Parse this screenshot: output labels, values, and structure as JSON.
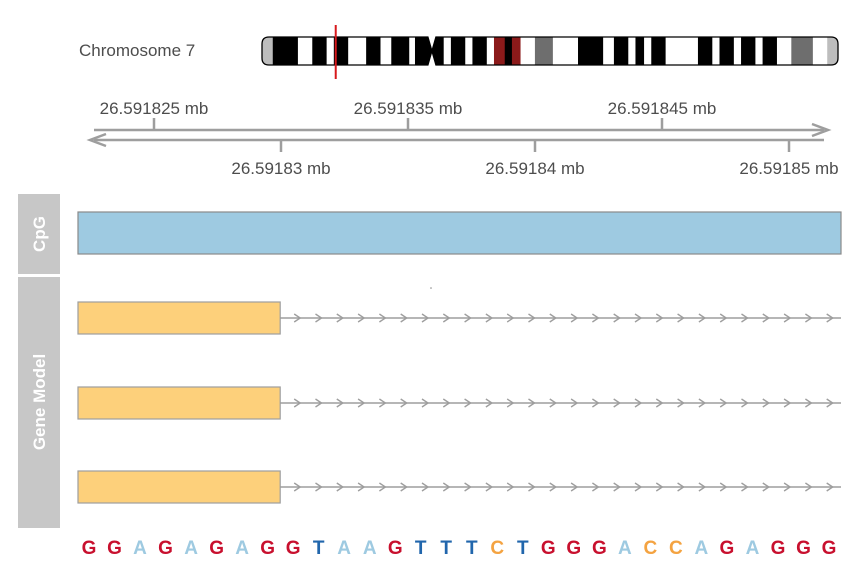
{
  "ideogram": {
    "label": "Chromosome 7",
    "bands": [
      {
        "color": "#bdbdbd",
        "len": 1.5
      },
      {
        "color": "#000000",
        "len": 3.5
      },
      {
        "color": "#ffffff",
        "len": 2
      },
      {
        "color": "#000000",
        "len": 2
      },
      {
        "color": "#ffffff",
        "len": 1
      },
      {
        "color": "#000000",
        "len": 2
      },
      {
        "color": "#ffffff",
        "len": 2.5
      },
      {
        "color": "#000000",
        "len": 2
      },
      {
        "color": "#ffffff",
        "len": 1.5
      },
      {
        "color": "#000000",
        "len": 2.5
      },
      {
        "color": "#ffffff",
        "len": 0.8
      },
      {
        "color": "#000000",
        "len": 4
      },
      {
        "color": "#ffffff",
        "len": 1
      },
      {
        "color": "#000000",
        "len": 2
      },
      {
        "color": "#ffffff",
        "len": 1
      },
      {
        "color": "#000000",
        "len": 2
      },
      {
        "color": "#ffffff",
        "len": 1
      },
      {
        "color": "#8b1a1a",
        "len": 1.5
      },
      {
        "color": "#000000",
        "len": 1
      },
      {
        "color": "#8b1a1a",
        "len": 1.2
      },
      {
        "color": "#ffffff",
        "len": 2
      },
      {
        "color": "#6e6e6e",
        "len": 2.5
      },
      {
        "color": "#ffffff",
        "len": 3.5
      },
      {
        "color": "#000000",
        "len": 3.5
      },
      {
        "color": "#ffffff",
        "len": 1.5
      },
      {
        "color": "#000000",
        "len": 2
      },
      {
        "color": "#ffffff",
        "len": 1
      },
      {
        "color": "#000000",
        "len": 1.2
      },
      {
        "color": "#ffffff",
        "len": 1
      },
      {
        "color": "#000000",
        "len": 2
      },
      {
        "color": "#ffffff",
        "len": 4.5
      },
      {
        "color": "#000000",
        "len": 2
      },
      {
        "color": "#ffffff",
        "len": 1
      },
      {
        "color": "#000000",
        "len": 2
      },
      {
        "color": "#ffffff",
        "len": 1
      },
      {
        "color": "#000000",
        "len": 2
      },
      {
        "color": "#ffffff",
        "len": 1
      },
      {
        "color": "#000000",
        "len": 2
      },
      {
        "color": "#ffffff",
        "len": 2
      },
      {
        "color": "#6e6e6e",
        "len": 3
      },
      {
        "color": "#ffffff",
        "len": 2
      },
      {
        "color": "#bdbdbd",
        "len": 1.5
      }
    ],
    "centromere_fraction": 0.295,
    "highlight_fraction": 0.128,
    "highlight_color": "#d7191c",
    "centromere_color": "#8b1a1a"
  },
  "axis": {
    "upper_ticks": [
      {
        "pos": 26.591825,
        "label": "26.591825 mb"
      },
      {
        "pos": 26.591835,
        "label": "26.591835 mb"
      },
      {
        "pos": 26.591845,
        "label": "26.591845 mb"
      }
    ],
    "lower_ticks": [
      {
        "pos": 26.59183,
        "label": "26.59183 mb"
      },
      {
        "pos": 26.59184,
        "label": "26.59184 mb"
      },
      {
        "pos": 26.59185,
        "label": "26.59185 mb"
      }
    ],
    "range_mb": [
      26.59182,
      26.59185
    ]
  },
  "tracks": {
    "cpg": {
      "title": "CpG",
      "fill": "#9ecae1"
    },
    "gene_model": {
      "title": "Gene Model",
      "exon_fill": "#fdd07b",
      "transcripts": [
        {
          "exon_end_fraction": 0.265
        },
        {
          "exon_end_fraction": 0.265
        },
        {
          "exon_end_fraction": 0.265
        }
      ]
    },
    "panel_color": "#c7c7c7"
  },
  "sequence": {
    "bases": [
      "G",
      "G",
      "A",
      "G",
      "A",
      "G",
      "A",
      "G",
      "G",
      "T",
      "A",
      "A",
      "G",
      "T",
      "T",
      "T",
      "C",
      "T",
      "G",
      "G",
      "G",
      "A",
      "C",
      "C",
      "A",
      "G",
      "A",
      "G",
      "G",
      "G"
    ],
    "colors": {
      "G": "#c8102e",
      "A": "#9ecae1",
      "T": "#2166ac",
      "C": "#f4a341"
    }
  }
}
